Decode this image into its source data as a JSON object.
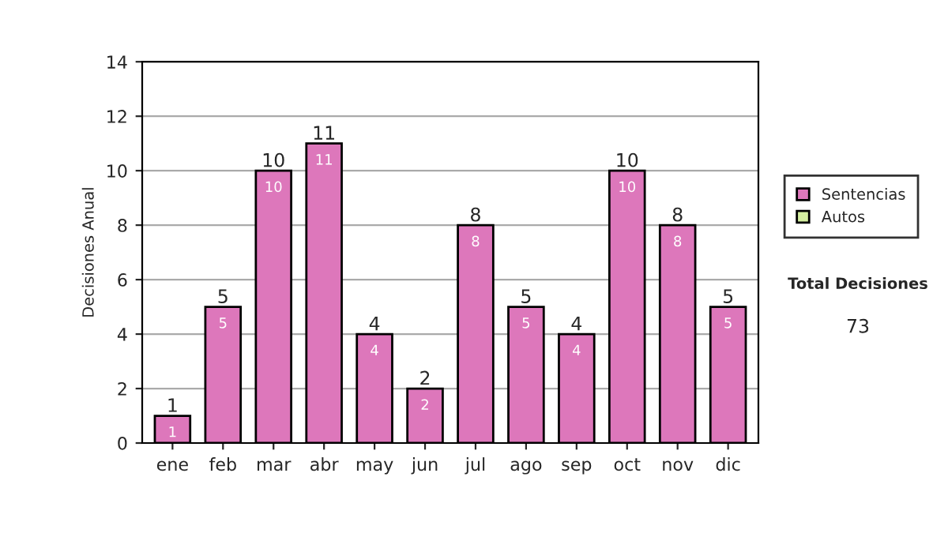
{
  "chart_data": {
    "type": "bar",
    "ylabel": "Decisiones Anual",
    "categories": [
      "ene",
      "feb",
      "mar",
      "abr",
      "may",
      "jun",
      "jul",
      "ago",
      "sep",
      "oct",
      "nov",
      "dic"
    ],
    "stacked": true,
    "series": [
      {
        "name": "Sentencias",
        "color": "#dd77bb",
        "values": [
          1,
          5,
          10,
          11,
          4,
          2,
          8,
          5,
          4,
          10,
          8,
          5
        ],
        "value_labels": [
          "1",
          "5",
          "10",
          "11",
          "4",
          "2",
          "8",
          "5",
          "4",
          "10",
          "8",
          "5"
        ]
      },
      {
        "name": "Autos",
        "color": "#d4eea0",
        "values": [
          0,
          0,
          0,
          0,
          0,
          0,
          0,
          0,
          0,
          0,
          0,
          0
        ]
      }
    ],
    "totals": [
      "1",
      "5",
      "10",
      "11",
      "4",
      "2",
      "8",
      "5",
      "4",
      "10",
      "8",
      "5"
    ],
    "ylim": [
      0,
      14
    ],
    "yticks": [
      0,
      2,
      4,
      6,
      8,
      10,
      12,
      14
    ],
    "grid": "y",
    "legend": "right",
    "annotations": [
      "Total Decisiones",
      "73"
    ]
  }
}
